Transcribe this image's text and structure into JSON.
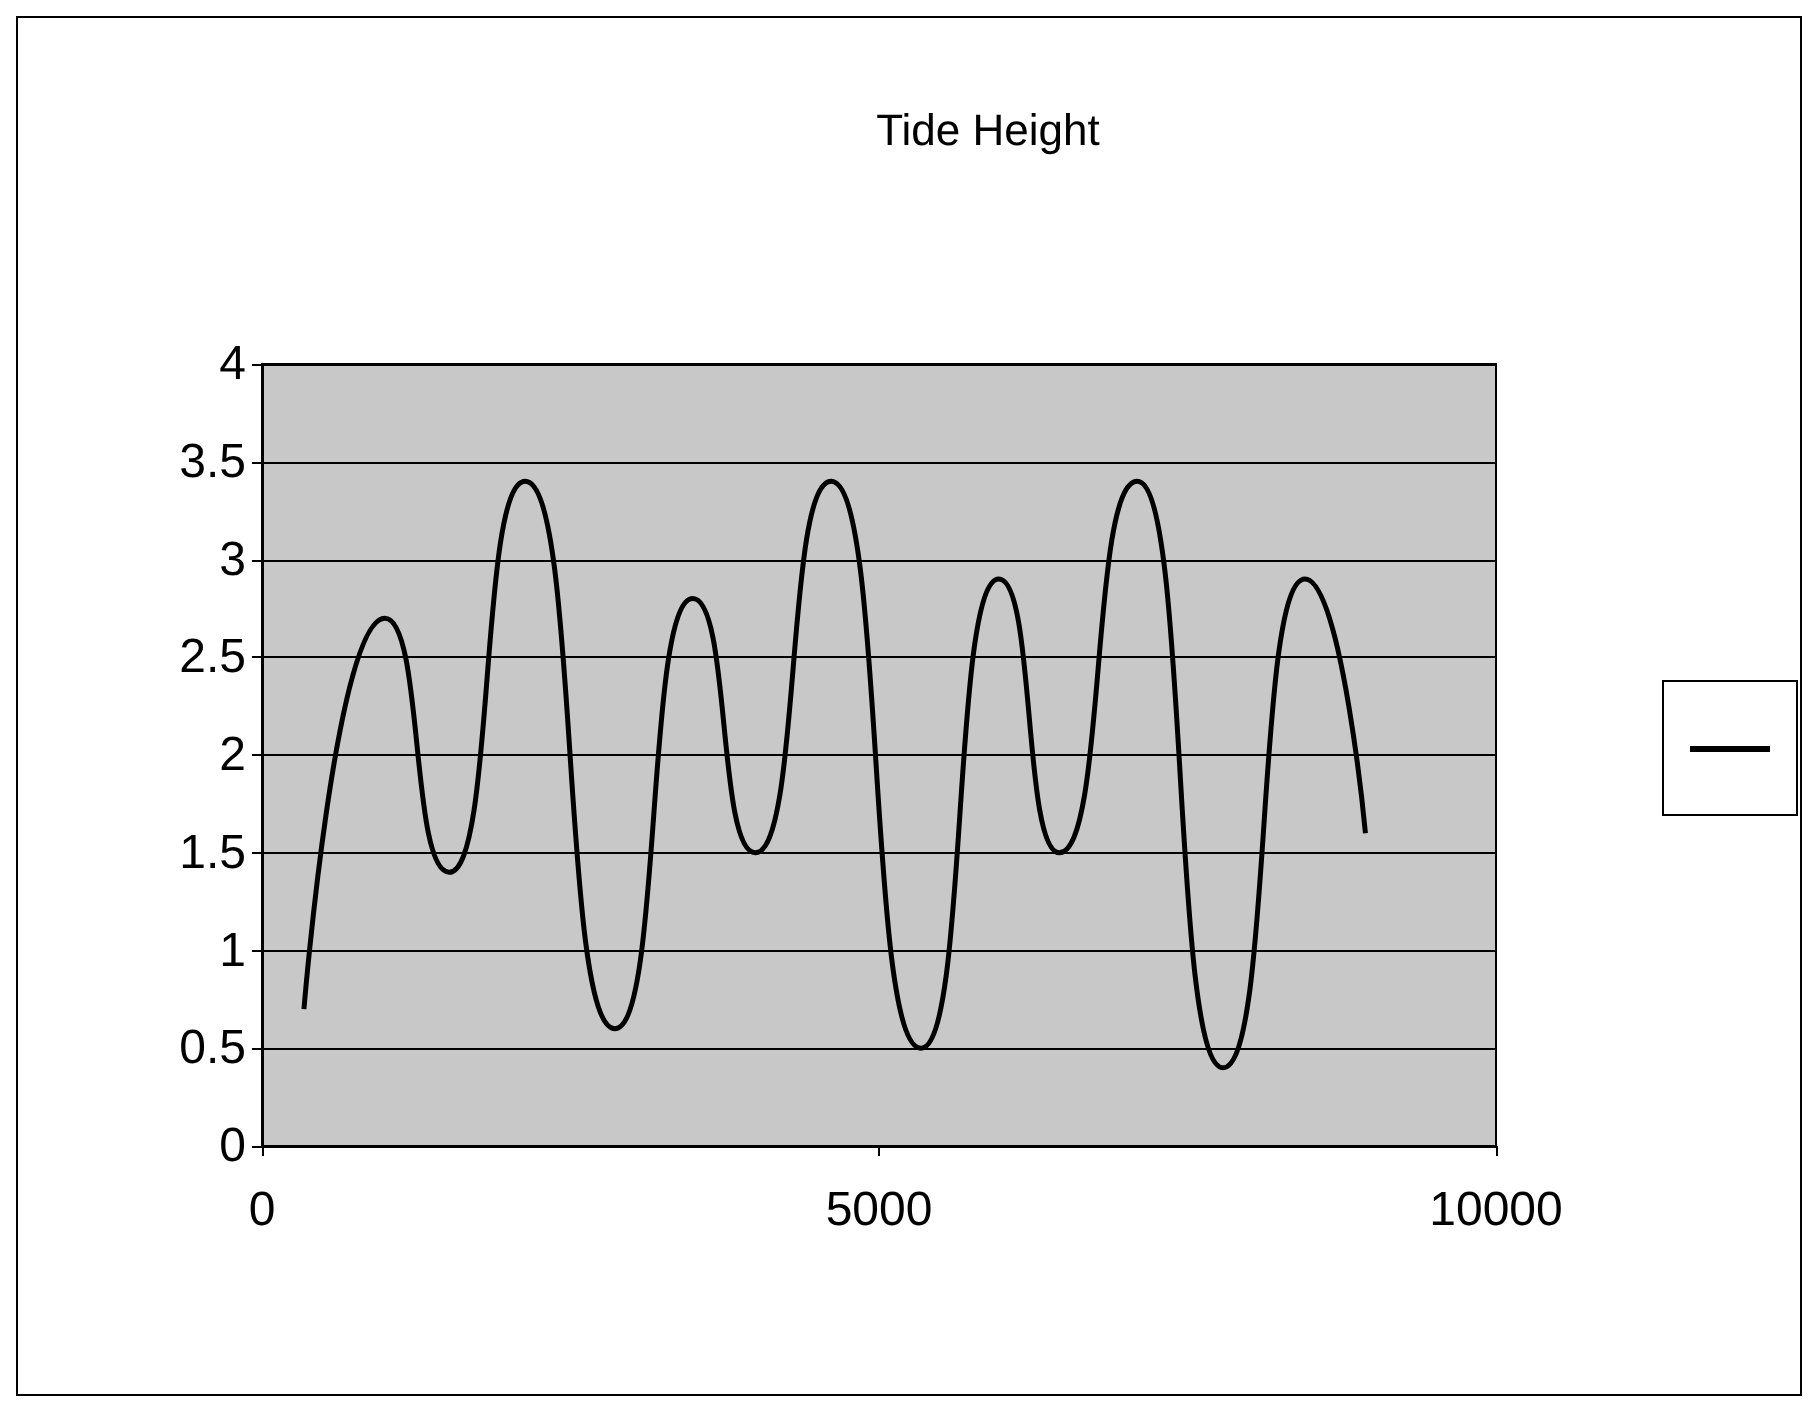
{
  "chart_data": {
    "type": "line",
    "title": "Tide Height",
    "series": [
      {
        "color": "#000000",
        "x": [
          340,
          995,
          1517,
          2133,
          2860,
          3491,
          3997,
          4613,
          5340,
          5972,
          6461,
          7093,
          7788,
          8452,
          8942
        ],
        "values": [
          0.7,
          2.7,
          1.4,
          3.4,
          0.6,
          2.8,
          1.5,
          3.4,
          0.5,
          2.9,
          1.5,
          3.4,
          0.4,
          2.9,
          1.6
        ]
      }
    ],
    "xlim": [
      0,
      10000
    ],
    "xticks": [
      0,
      5000,
      10000
    ],
    "ylim": [
      0,
      4
    ],
    "yticks": [
      0,
      0.5,
      1,
      1.5,
      2,
      2.5,
      3,
      3.5,
      4
    ],
    "grid": "y",
    "marker": "none",
    "line_style": "solid"
  }
}
